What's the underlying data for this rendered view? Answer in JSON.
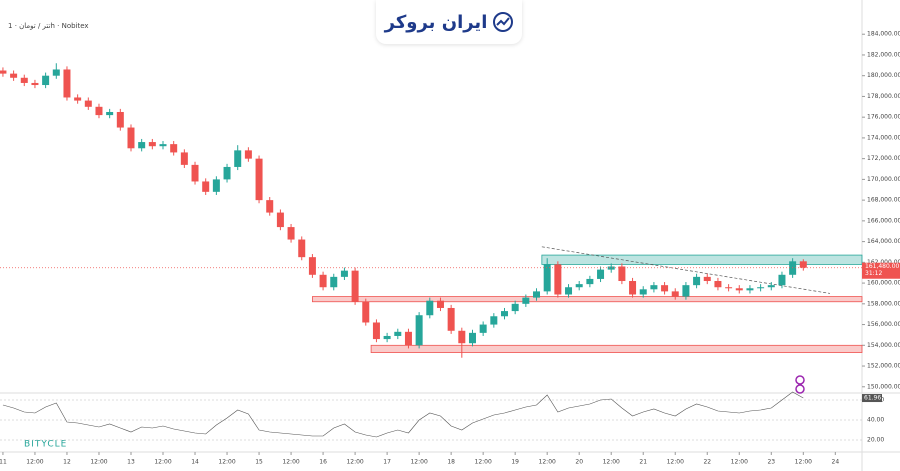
{
  "chart_data": {
    "type": "candlestick",
    "legend_text": "تتر / تومان · 1h · Nobitex",
    "brand": "ایران بروکر",
    "watermark": "BITYCLE",
    "x": [
      0,
      4,
      8,
      12,
      16,
      20,
      24,
      28,
      32,
      36,
      40,
      44,
      48,
      52,
      56,
      60,
      64,
      68,
      72,
      76,
      80,
      84,
      88,
      92,
      96,
      100,
      104,
      108,
      112,
      116,
      120,
      124,
      128,
      132,
      136,
      140,
      144,
      148,
      152,
      156,
      160,
      164,
      168,
      172,
      176,
      180,
      184,
      188,
      192,
      196,
      200,
      204,
      208,
      212,
      216,
      220,
      224,
      228,
      232,
      236,
      240,
      244,
      248,
      252,
      256,
      260,
      264,
      268,
      272,
      276,
      280,
      284,
      288,
      292,
      296,
      300
    ],
    "open": [
      180500,
      180200,
      179800,
      179300,
      179100,
      180000,
      180600,
      177900,
      177600,
      177000,
      176200,
      176500,
      175000,
      173000,
      173600,
      173200,
      173400,
      172600,
      171400,
      169800,
      168800,
      170000,
      171200,
      172800,
      172000,
      168000,
      166800,
      165400,
      164200,
      162500,
      160800,
      159600,
      160600,
      161200,
      158200,
      156200,
      154600,
      154900,
      155300,
      154000,
      156900,
      158300,
      157600,
      155400,
      154200,
      155200,
      156000,
      156800,
      157300,
      158000,
      158600,
      159200,
      161800,
      158900,
      159600,
      159900,
      160400,
      161300,
      161600,
      160200,
      158900,
      159400,
      159800,
      159200,
      158700,
      159800,
      160600,
      160200,
      159600,
      159500,
      159300,
      159500,
      159600,
      159800,
      160800,
      162100
    ],
    "high": [
      180800,
      180500,
      180100,
      179600,
      180300,
      181200,
      180900,
      178200,
      177900,
      177300,
      176800,
      176800,
      175300,
      173900,
      173900,
      173700,
      173700,
      172900,
      171700,
      170100,
      170300,
      171500,
      173300,
      173100,
      172300,
      168300,
      167100,
      165700,
      164500,
      162800,
      161100,
      160900,
      161500,
      161500,
      158500,
      156500,
      155200,
      155600,
      155600,
      157200,
      158600,
      158600,
      157900,
      155700,
      155500,
      156300,
      157100,
      157600,
      158300,
      158900,
      159500,
      162400,
      162100,
      159900,
      160200,
      160700,
      161600,
      161900,
      161900,
      160500,
      159700,
      160100,
      160100,
      159500,
      160100,
      160900,
      160900,
      160500,
      159900,
      159800,
      159800,
      159900,
      160100,
      161100,
      162400,
      162300
    ],
    "low": [
      179900,
      179500,
      179000,
      178800,
      178800,
      179700,
      177600,
      177300,
      176700,
      175900,
      175900,
      174700,
      172700,
      172700,
      172900,
      172900,
      172300,
      171100,
      169500,
      168500,
      168500,
      169700,
      170900,
      171700,
      167700,
      166500,
      165100,
      163900,
      162200,
      160500,
      159300,
      159300,
      160300,
      157900,
      155900,
      154300,
      154300,
      154600,
      153700,
      153700,
      156600,
      157300,
      155100,
      152800,
      153900,
      154900,
      155700,
      156500,
      157000,
      157700,
      158300,
      158900,
      158600,
      158600,
      159300,
      159600,
      160100,
      161000,
      159900,
      158600,
      158600,
      159100,
      158900,
      158400,
      158400,
      159500,
      159900,
      159300,
      159200,
      159000,
      159000,
      159200,
      159300,
      159500,
      160500,
      161200
    ],
    "close": [
      180200,
      179800,
      179300,
      179100,
      180000,
      180600,
      177900,
      177600,
      177000,
      176200,
      176500,
      175000,
      173000,
      173600,
      173200,
      173400,
      172600,
      171400,
      169800,
      168800,
      170000,
      171200,
      172800,
      172000,
      168000,
      166800,
      165400,
      164200,
      162500,
      160800,
      159600,
      160600,
      161200,
      158200,
      156200,
      154600,
      154900,
      155300,
      154000,
      156900,
      158300,
      157600,
      155400,
      154200,
      155200,
      156000,
      156800,
      157300,
      158000,
      158600,
      159200,
      161800,
      158900,
      159600,
      159900,
      160400,
      161300,
      161600,
      160200,
      158900,
      159400,
      159800,
      159200,
      158700,
      159800,
      160600,
      160200,
      159600,
      159500,
      159300,
      159500,
      159600,
      159800,
      160800,
      162100,
      161480
    ],
    "up_color": "#26a69a",
    "down_color": "#ef5350",
    "xlim": [
      -1.1,
      322
    ],
    "xticks": [
      {
        "value": 0,
        "label": "11"
      },
      {
        "value": 12,
        "label": "12:00"
      },
      {
        "value": 24,
        "label": "12"
      },
      {
        "value": 36,
        "label": "12:00"
      },
      {
        "value": 48,
        "label": "13"
      },
      {
        "value": 60,
        "label": "12:00"
      },
      {
        "value": 72,
        "label": "14"
      },
      {
        "value": 84,
        "label": "12:00"
      },
      {
        "value": 96,
        "label": "15"
      },
      {
        "value": 108,
        "label": "12:00"
      },
      {
        "value": 120,
        "label": "16"
      },
      {
        "value": 132,
        "label": "12:00"
      },
      {
        "value": 144,
        "label": "17"
      },
      {
        "value": 156,
        "label": "12:00"
      },
      {
        "value": 168,
        "label": "18"
      },
      {
        "value": 180,
        "label": "12:00"
      },
      {
        "value": 192,
        "label": "19"
      },
      {
        "value": 204,
        "label": "12:00"
      },
      {
        "value": 216,
        "label": "20"
      },
      {
        "value": 228,
        "label": "12:00"
      },
      {
        "value": 240,
        "label": "21"
      },
      {
        "value": 252,
        "label": "12:00"
      },
      {
        "value": 264,
        "label": "22"
      },
      {
        "value": 276,
        "label": "12:00"
      },
      {
        "value": 288,
        "label": "23"
      },
      {
        "value": 300,
        "label": "12:00"
      },
      {
        "value": 312,
        "label": "24"
      }
    ],
    "ylim": [
      149400,
      187300
    ],
    "yticks": [
      {
        "value": 150000,
        "label": "150,000.00"
      },
      {
        "value": 152000,
        "label": "152,000.00"
      },
      {
        "value": 154000,
        "label": "154,000.00"
      },
      {
        "value": 156000,
        "label": "156,000.00"
      },
      {
        "value": 158000,
        "label": "158,000.00"
      },
      {
        "value": 160000,
        "label": "160,000.00"
      },
      {
        "value": 162000,
        "label": "162,000.00"
      },
      {
        "value": 164000,
        "label": "164,000.00"
      },
      {
        "value": 166000,
        "label": "166,000.00"
      },
      {
        "value": 168000,
        "label": "168,000.00"
      },
      {
        "value": 170000,
        "label": "170,000.00"
      },
      {
        "value": 172000,
        "label": "172,000.00"
      },
      {
        "value": 174000,
        "label": "174,000.00"
      },
      {
        "value": 176000,
        "label": "176,000.00"
      },
      {
        "value": 178000,
        "label": "178,000.00"
      },
      {
        "value": 180000,
        "label": "180,000.00"
      },
      {
        "value": 182000,
        "label": "182,000.00"
      },
      {
        "value": 184000,
        "label": "184,000.00"
      }
    ],
    "current_price": {
      "value": 161480,
      "label": "161,480.00"
    },
    "countdown": "31:12",
    "zones": [
      {
        "start": 202,
        "from": 161800,
        "to": 162700,
        "color": "#26a69a"
      },
      {
        "start": 116,
        "from": 158200,
        "to": 158700,
        "color": "#ef5350"
      },
      {
        "start": 138,
        "from": 153300,
        "to": 154000,
        "color": "#ef5350"
      }
    ],
    "trendline": {
      "x": [
        202,
        310
      ],
      "y": [
        163500,
        159000
      ]
    },
    "rsi": {
      "color": "#7e57c2",
      "values": [
        55,
        52,
        48,
        47,
        53,
        57,
        38,
        37,
        35,
        33,
        36,
        32,
        28,
        33,
        32,
        34,
        31,
        29,
        27,
        26,
        35,
        42,
        50,
        46,
        30,
        28,
        27,
        26,
        25,
        24,
        24,
        32,
        36,
        28,
        25,
        23,
        27,
        30,
        27,
        40,
        47,
        44,
        34,
        30,
        37,
        41,
        45,
        47,
        50,
        53,
        55,
        65,
        48,
        52,
        54,
        56,
        60,
        61,
        52,
        44,
        48,
        51,
        47,
        44,
        51,
        56,
        53,
        49,
        48,
        47,
        49,
        50,
        52,
        60,
        68,
        61.96
      ],
      "ylim": [
        12,
        67
      ],
      "yticks": [
        {
          "value": 60,
          "label": "60.00"
        },
        {
          "value": 40,
          "label": "40.00"
        },
        {
          "value": 20,
          "label": "20.00"
        }
      ]
    }
  }
}
